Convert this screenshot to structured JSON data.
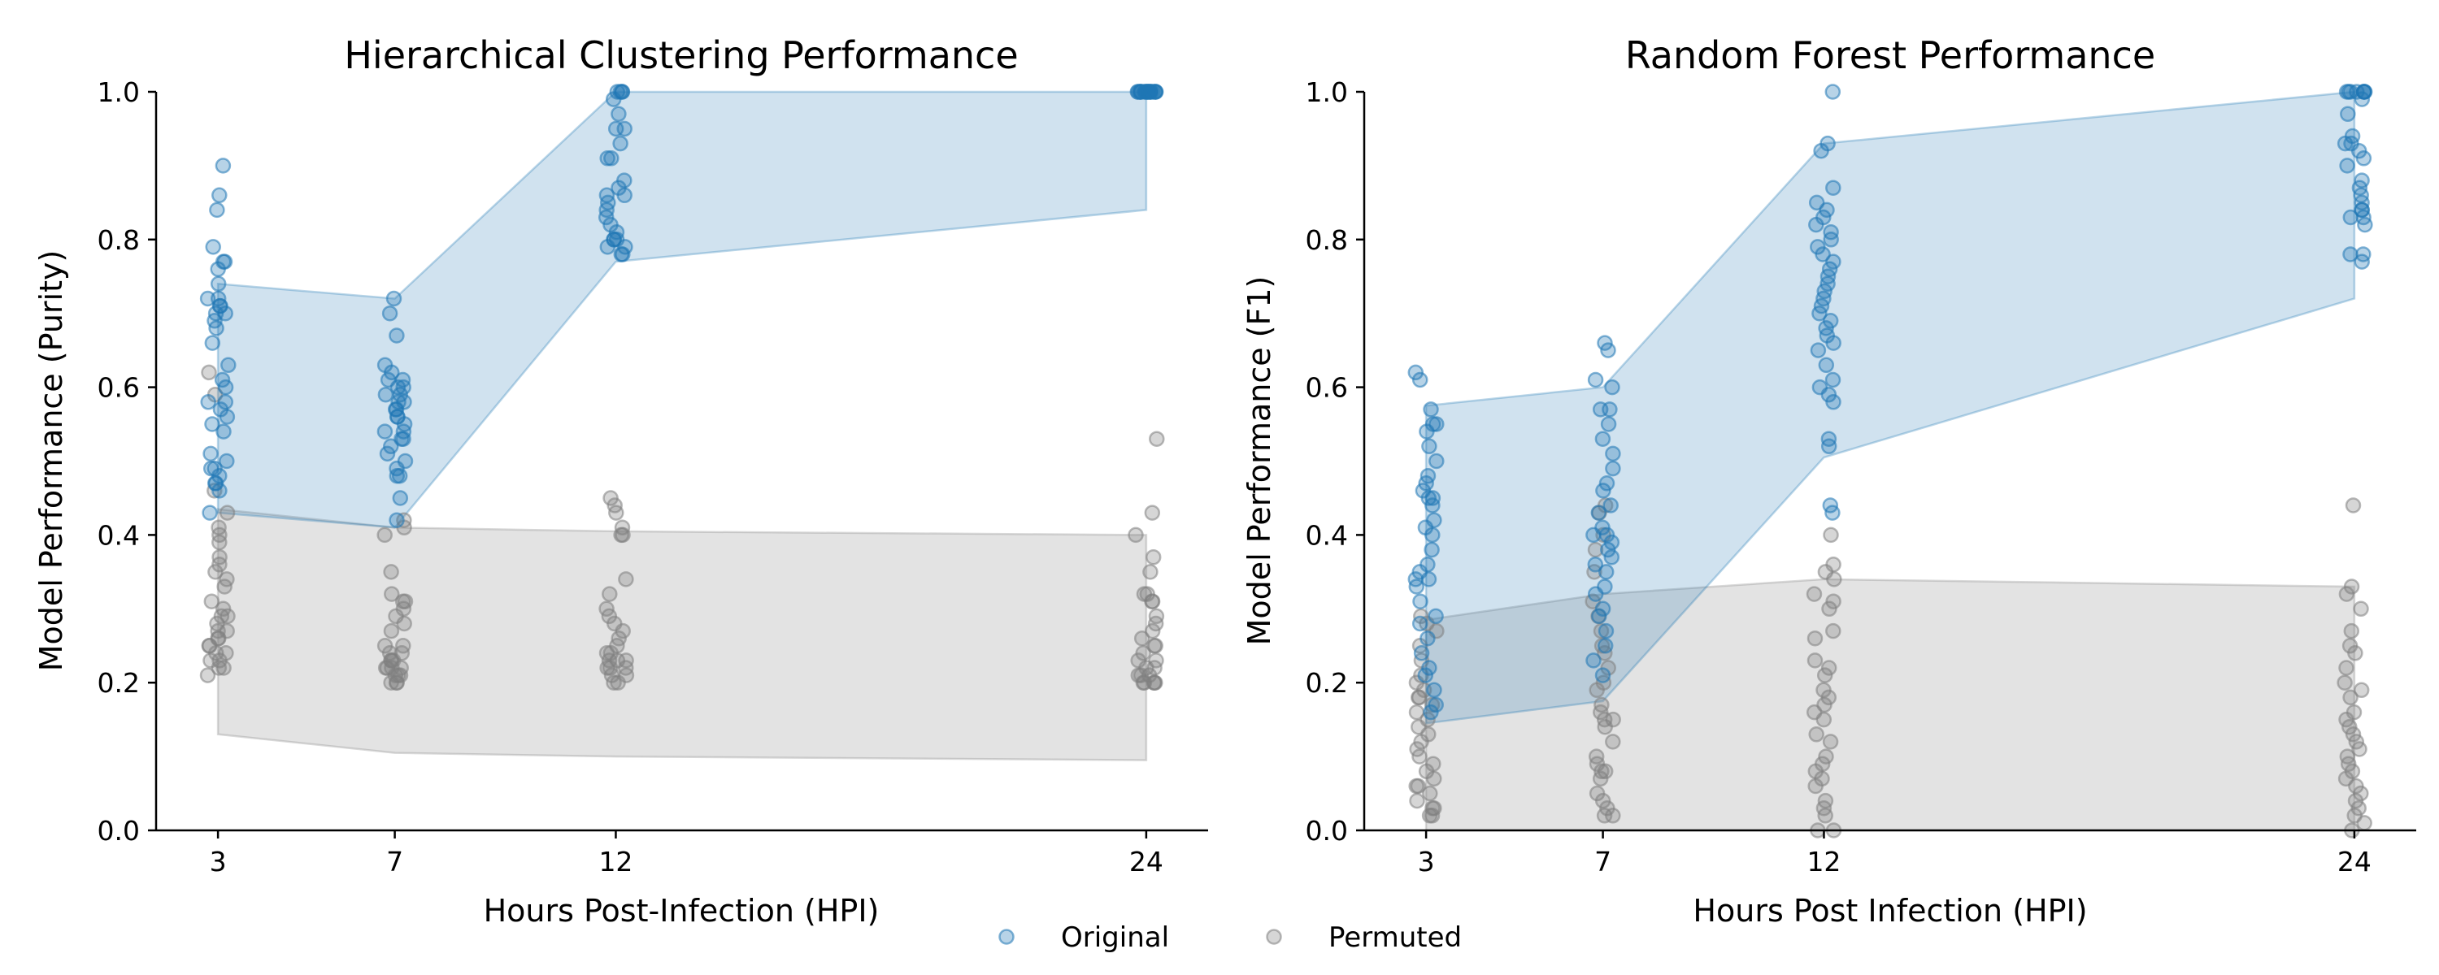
{
  "figure": {
    "legend": {
      "placement": "bottom-center",
      "entries": [
        {
          "label": "Original",
          "color": "#1f77b4"
        },
        {
          "label": "Permuted",
          "color": "#808080"
        }
      ]
    }
  },
  "chart_data": [
    {
      "type": "scatter",
      "title": "Hierarchical Clustering Performance",
      "xlabel": "Hours Post-Infection (HPI)",
      "ylabel": "Model Performance (Purity)",
      "x_ticks": [
        3,
        7,
        12,
        24
      ],
      "y_ticks": [
        "0.0",
        "0.2",
        "0.4",
        "0.6",
        "0.8",
        "1.0"
      ],
      "xlim": [
        1.6,
        25.4
      ],
      "ylim": [
        0,
        1
      ],
      "grid": false,
      "series": [
        {
          "name": "Original",
          "color": "#1f77b4",
          "band_lower": [
            0.43,
            0.41,
            0.77,
            0.84
          ],
          "band_upper": [
            0.74,
            0.72,
            1.0,
            1.0
          ],
          "points_by_x": {
            "3": [
              0.9,
              0.86,
              0.84,
              0.79,
              0.77,
              0.77,
              0.76,
              0.74,
              0.72,
              0.72,
              0.71,
              0.71,
              0.7,
              0.7,
              0.69,
              0.68,
              0.66,
              0.63,
              0.61,
              0.6,
              0.58,
              0.58,
              0.57,
              0.56,
              0.55,
              0.54,
              0.51,
              0.5,
              0.49,
              0.49,
              0.48,
              0.47,
              0.47,
              0.46,
              0.43
            ],
            "7": [
              0.72,
              0.7,
              0.67,
              0.63,
              0.62,
              0.61,
              0.61,
              0.6,
              0.6,
              0.59,
              0.59,
              0.58,
              0.58,
              0.57,
              0.57,
              0.56,
              0.56,
              0.55,
              0.54,
              0.54,
              0.53,
              0.53,
              0.52,
              0.51,
              0.5,
              0.49,
              0.48,
              0.48,
              0.45,
              0.42
            ],
            "12": [
              1.0,
              1.0,
              1.0,
              1.0,
              0.99,
              0.97,
              0.95,
              0.95,
              0.93,
              0.91,
              0.91,
              0.88,
              0.87,
              0.86,
              0.86,
              0.85,
              0.84,
              0.83,
              0.82,
              0.81,
              0.8,
              0.8,
              0.8,
              0.79,
              0.79,
              0.78,
              0.78
            ],
            "24": [
              1.0,
              1.0,
              1.0,
              1.0,
              1.0,
              1.0,
              1.0,
              1.0,
              1.0,
              1.0,
              1.0,
              1.0,
              1.0,
              1.0,
              1.0,
              1.0,
              1.0,
              1.0,
              1.0,
              1.0
            ]
          }
        },
        {
          "name": "Permuted",
          "color": "#808080",
          "band_lower": [
            0.13,
            0.105,
            0.1,
            0.095
          ],
          "band_upper": [
            0.435,
            0.41,
            0.405,
            0.4
          ],
          "points_by_x": {
            "3": [
              0.62,
              0.59,
              0.46,
              0.43,
              0.41,
              0.4,
              0.39,
              0.37,
              0.36,
              0.35,
              0.34,
              0.33,
              0.31,
              0.3,
              0.29,
              0.29,
              0.28,
              0.27,
              0.27,
              0.26,
              0.26,
              0.25,
              0.25,
              0.24,
              0.24,
              0.23,
              0.23,
              0.22,
              0.22,
              0.21
            ],
            "7": [
              0.42,
              0.41,
              0.4,
              0.35,
              0.32,
              0.31,
              0.31,
              0.3,
              0.29,
              0.28,
              0.27,
              0.25,
              0.25,
              0.24,
              0.24,
              0.23,
              0.23,
              0.23,
              0.22,
              0.22,
              0.22,
              0.22,
              0.21,
              0.21,
              0.21,
              0.2,
              0.2,
              0.2
            ],
            "12": [
              0.45,
              0.44,
              0.43,
              0.41,
              0.4,
              0.4,
              0.34,
              0.32,
              0.3,
              0.29,
              0.28,
              0.27,
              0.26,
              0.25,
              0.24,
              0.24,
              0.23,
              0.23,
              0.23,
              0.22,
              0.22,
              0.22,
              0.21,
              0.21,
              0.2,
              0.2
            ],
            "24": [
              0.53,
              0.43,
              0.4,
              0.37,
              0.35,
              0.32,
              0.32,
              0.31,
              0.31,
              0.29,
              0.28,
              0.27,
              0.26,
              0.25,
              0.25,
              0.24,
              0.23,
              0.23,
              0.22,
              0.22,
              0.21,
              0.21,
              0.21,
              0.2,
              0.2,
              0.2,
              0.2,
              0.2
            ]
          }
        }
      ]
    },
    {
      "type": "scatter",
      "title": "Random Forest Performance",
      "xlabel": "Hours Post Infection (HPI)",
      "ylabel": "Model Performance (F1)",
      "x_ticks": [
        3,
        7,
        12,
        24
      ],
      "y_ticks": [
        "0.0",
        "0.2",
        "0.4",
        "0.6",
        "0.8",
        "1.0"
      ],
      "xlim": [
        1.6,
        25.4
      ],
      "ylim": [
        0,
        1
      ],
      "grid": false,
      "series": [
        {
          "name": "Original",
          "color": "#1f77b4",
          "band_lower": [
            0.145,
            0.175,
            0.505,
            0.72
          ],
          "band_upper": [
            0.575,
            0.6,
            0.93,
            1.0
          ],
          "points_by_x": {
            "3": [
              0.62,
              0.61,
              0.57,
              0.55,
              0.55,
              0.54,
              0.52,
              0.5,
              0.48,
              0.47,
              0.46,
              0.45,
              0.45,
              0.44,
              0.42,
              0.41,
              0.4,
              0.38,
              0.36,
              0.35,
              0.34,
              0.34,
              0.33,
              0.31,
              0.29,
              0.28,
              0.26,
              0.24,
              0.22,
              0.21,
              0.19,
              0.17,
              0.16
            ],
            "7": [
              0.66,
              0.65,
              0.61,
              0.6,
              0.57,
              0.57,
              0.55,
              0.53,
              0.51,
              0.49,
              0.47,
              0.46,
              0.44,
              0.43,
              0.41,
              0.4,
              0.4,
              0.39,
              0.38,
              0.37,
              0.36,
              0.35,
              0.33,
              0.32,
              0.3,
              0.29,
              0.27,
              0.25,
              0.23,
              0.21
            ],
            "12": [
              1.0,
              0.93,
              0.92,
              0.87,
              0.85,
              0.84,
              0.83,
              0.82,
              0.81,
              0.8,
              0.79,
              0.78,
              0.77,
              0.76,
              0.75,
              0.74,
              0.73,
              0.72,
              0.71,
              0.7,
              0.69,
              0.68,
              0.67,
              0.66,
              0.65,
              0.63,
              0.61,
              0.6,
              0.59,
              0.58,
              0.53,
              0.52,
              0.44,
              0.43
            ],
            "24": [
              1.0,
              1.0,
              1.0,
              1.0,
              1.0,
              1.0,
              1.0,
              1.0,
              0.99,
              0.97,
              0.94,
              0.93,
              0.93,
              0.92,
              0.91,
              0.9,
              0.88,
              0.87,
              0.86,
              0.85,
              0.84,
              0.84,
              0.83,
              0.83,
              0.82,
              0.78,
              0.78,
              0.77
            ]
          }
        },
        {
          "name": "Permuted",
          "color": "#808080",
          "band_lower": [
            0.0,
            0.0,
            0.0,
            0.0
          ],
          "band_upper": [
            0.285,
            0.32,
            0.34,
            0.33
          ],
          "points_by_x": {
            "3": [
              0.29,
              0.28,
              0.27,
              0.25,
              0.23,
              0.21,
              0.2,
              0.19,
              0.18,
              0.18,
              0.17,
              0.16,
              0.15,
              0.14,
              0.13,
              0.12,
              0.11,
              0.1,
              0.09,
              0.08,
              0.07,
              0.06,
              0.06,
              0.05,
              0.04,
              0.03,
              0.03,
              0.02,
              0.02
            ],
            "7": [
              0.44,
              0.43,
              0.4,
              0.38,
              0.35,
              0.31,
              0.29,
              0.27,
              0.25,
              0.24,
              0.22,
              0.2,
              0.19,
              0.17,
              0.16,
              0.15,
              0.15,
              0.14,
              0.12,
              0.1,
              0.09,
              0.08,
              0.08,
              0.07,
              0.05,
              0.04,
              0.03,
              0.02,
              0.02
            ],
            "12": [
              0.4,
              0.36,
              0.35,
              0.34,
              0.32,
              0.31,
              0.3,
              0.27,
              0.26,
              0.23,
              0.22,
              0.21,
              0.19,
              0.18,
              0.17,
              0.16,
              0.15,
              0.13,
              0.12,
              0.1,
              0.09,
              0.08,
              0.07,
              0.06,
              0.04,
              0.03,
              0.02,
              0.0,
              0.0
            ],
            "24": [
              0.44,
              0.33,
              0.32,
              0.3,
              0.27,
              0.25,
              0.24,
              0.22,
              0.2,
              0.19,
              0.18,
              0.16,
              0.15,
              0.14,
              0.13,
              0.12,
              0.11,
              0.1,
              0.09,
              0.08,
              0.07,
              0.06,
              0.05,
              0.04,
              0.03,
              0.02,
              0.01,
              0.0
            ]
          }
        }
      ]
    }
  ]
}
